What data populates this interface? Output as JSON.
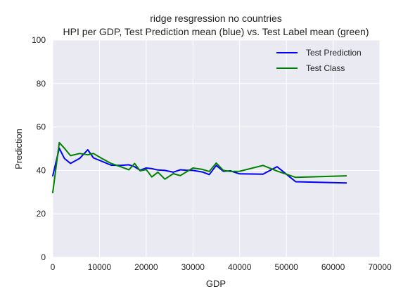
{
  "chart_data": {
    "type": "line",
    "title": "ridge resgression no countries",
    "subtitle": "HPI per GDP, Test Prediction mean (blue) vs. Test Label mean (green)",
    "xlabel": "GDP",
    "ylabel": "Prediction",
    "xlim": [
      0,
      70000
    ],
    "ylim": [
      0,
      100
    ],
    "xticks": [
      0,
      10000,
      20000,
      30000,
      40000,
      50000,
      60000,
      70000
    ],
    "yticks": [
      0,
      20,
      40,
      60,
      80,
      100
    ],
    "grid": true,
    "legend_position": "top-right",
    "series": [
      {
        "name": "Test Prediction",
        "color": "#0000ff",
        "x": [
          0,
          1400,
          2500,
          3800,
          5800,
          7500,
          8700,
          10500,
          12500,
          14500,
          16300,
          17500,
          18700,
          20000,
          21200,
          22500,
          24000,
          25800,
          27300,
          28500,
          30000,
          32000,
          33500,
          35000,
          36500,
          38000,
          40000,
          45000,
          48000,
          52000,
          62800
        ],
        "y": [
          37.5,
          50.2,
          45.5,
          43.2,
          45.6,
          49.5,
          45.8,
          44.2,
          42.4,
          42.3,
          42.6,
          41.7,
          40.1,
          41.1,
          40.8,
          40.2,
          40.0,
          39.2,
          40.3,
          40.1,
          40.0,
          39.3,
          38.1,
          42.3,
          39.6,
          39.8,
          38.4,
          38.3,
          41.7,
          34.8,
          34.2
        ]
      },
      {
        "name": "Test Class",
        "color": "#008000",
        "x": [
          0,
          1400,
          2500,
          3800,
          5800,
          7500,
          8700,
          10500,
          12500,
          14500,
          16300,
          17500,
          18700,
          20000,
          21200,
          22500,
          24000,
          25800,
          27300,
          28500,
          30000,
          32000,
          33500,
          35000,
          36500,
          38000,
          40000,
          45000,
          48000,
          52000,
          62800
        ],
        "y": [
          29.8,
          52.8,
          50.2,
          46.8,
          47.8,
          47.2,
          47.8,
          45.5,
          43.2,
          41.7,
          40.3,
          43.2,
          39.8,
          40.4,
          37.0,
          39.2,
          36.0,
          38.5,
          37.6,
          39.2,
          41.1,
          40.5,
          39.5,
          43.4,
          40.0,
          39.5,
          39.6,
          42.3,
          39.7,
          36.8,
          37.5
        ]
      }
    ]
  }
}
